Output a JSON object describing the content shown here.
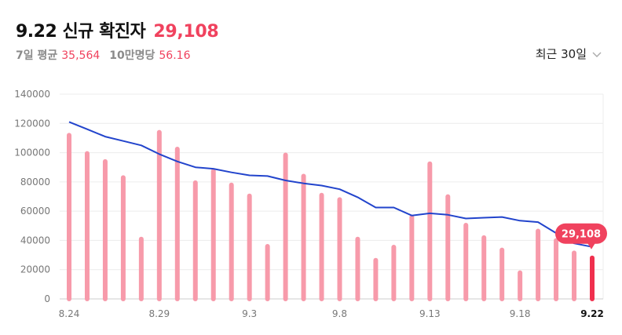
{
  "header": {
    "title": "9.22 신규 확진자",
    "total": "29,108",
    "avg_label": "7일 평균",
    "avg_value": "35,564",
    "per_label": "10만명당",
    "per_value": "56.16",
    "period": "최근 30일"
  },
  "chart_data": {
    "type": "bar",
    "title": "9.22 신규 확진자",
    "categories": [
      "8.24",
      "8.25",
      "8.26",
      "8.27",
      "8.28",
      "8.29",
      "8.30",
      "8.31",
      "9.1",
      "9.2",
      "9.3",
      "9.4",
      "9.5",
      "9.6",
      "9.7",
      "9.8",
      "9.9",
      "9.10",
      "9.11",
      "9.12",
      "9.13",
      "9.14",
      "9.15",
      "9.16",
      "9.17",
      "9.18",
      "9.19",
      "9.20",
      "9.21",
      "9.22"
    ],
    "x_tick_labels": [
      "8.24",
      "8.29",
      "9.3",
      "9.8",
      "9.13",
      "9.18",
      "9.22"
    ],
    "series": [
      {
        "name": "신규 확진자",
        "type": "bar",
        "values": [
          113000,
          100500,
          95000,
          84000,
          42000,
          115000,
          103500,
          80500,
          88500,
          79000,
          71500,
          37000,
          99500,
          85000,
          72000,
          69000,
          42000,
          27500,
          36500,
          57000,
          93500,
          71000,
          51500,
          43000,
          34500,
          19000,
          47500,
          41000,
          32500,
          29108
        ]
      },
      {
        "name": "7일 평균",
        "type": "line",
        "values": [
          121000,
          116000,
          111000,
          108000,
          105000,
          99000,
          94000,
          90000,
          89000,
          86500,
          84500,
          84000,
          81000,
          79000,
          77500,
          75000,
          69500,
          62500,
          62500,
          57000,
          58500,
          57500,
          55000,
          55500,
          56000,
          53500,
          52500,
          45000,
          38000,
          35564
        ]
      }
    ],
    "ylim": [
      0,
      140000
    ],
    "yticks": [
      0,
      20000,
      40000,
      60000,
      80000,
      100000,
      120000,
      140000
    ],
    "highlight_label": "29,108",
    "colors": {
      "bar": "#f79aaa",
      "bar_last": "#f0304e",
      "line": "#2244cc",
      "grid": "#ececec",
      "accent": "#f0425e"
    }
  }
}
